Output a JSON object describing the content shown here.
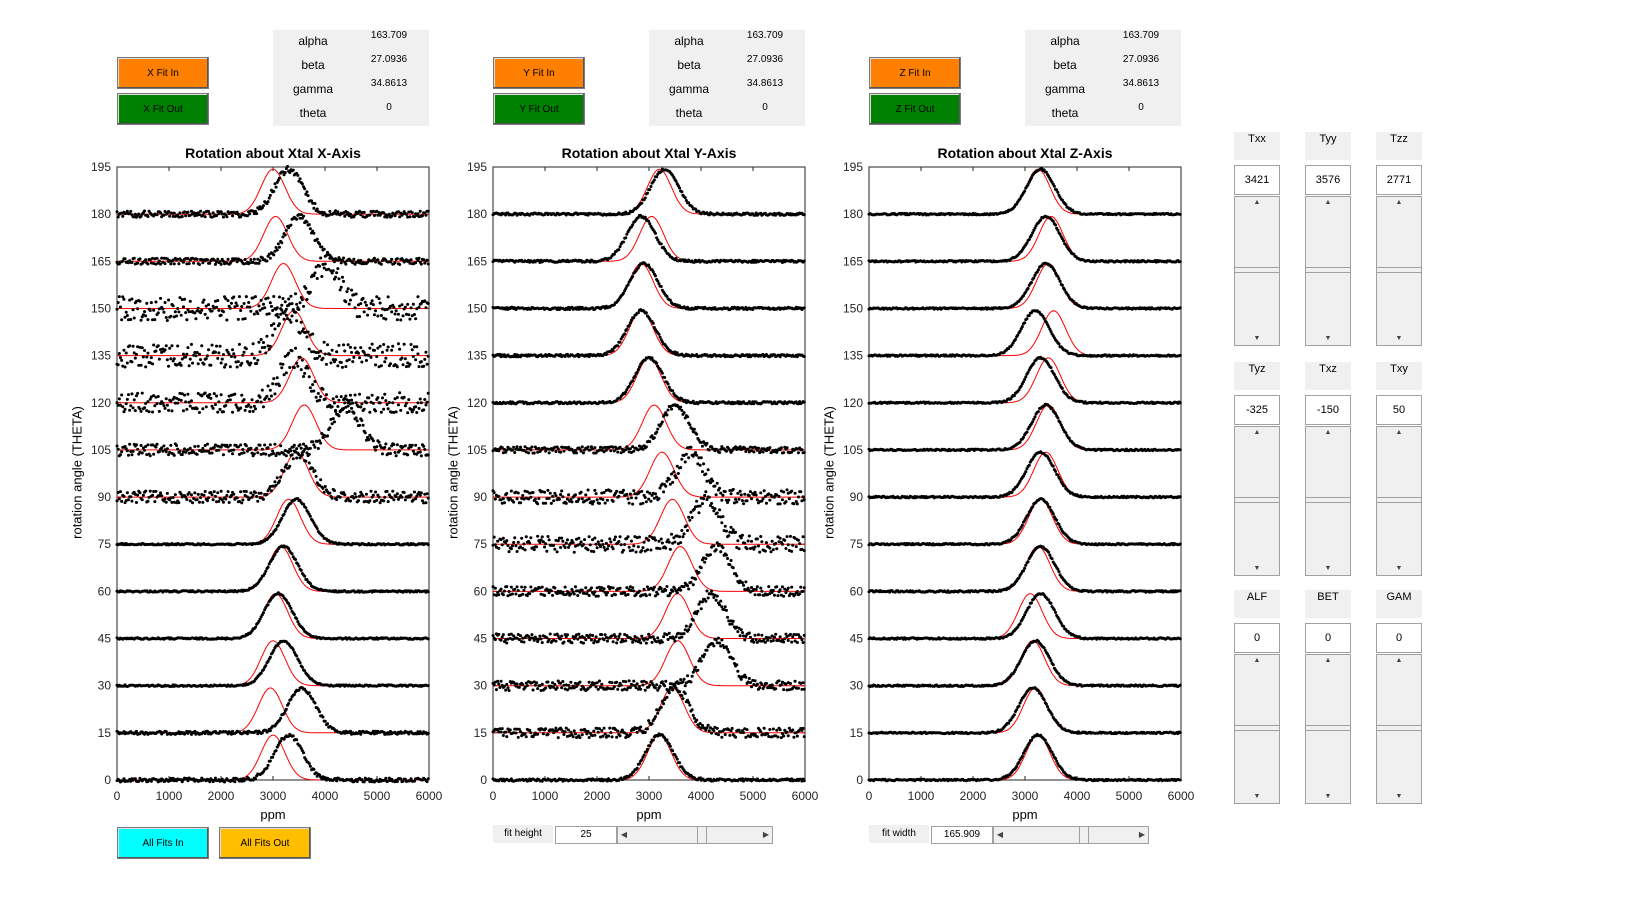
{
  "panels": [
    {
      "id": "x",
      "fit_in_label": "X Fit In",
      "fit_out_label": "X Fit Out",
      "params": [
        {
          "name": "alpha",
          "value": "163.709"
        },
        {
          "name": "beta",
          "value": "27.0936"
        },
        {
          "name": "gamma",
          "value": "34.8613"
        },
        {
          "name": "theta",
          "value": "0"
        }
      ],
      "title": "Rotation about Xtal X-Axis",
      "ylabel": "rotation angle (THETA)",
      "xlabel": "ppm"
    },
    {
      "id": "y",
      "fit_in_label": "Y Fit In",
      "fit_out_label": "Y Fit Out",
      "params": [
        {
          "name": "alpha",
          "value": "163.709"
        },
        {
          "name": "beta",
          "value": "27.0936"
        },
        {
          "name": "gamma",
          "value": "34.8613"
        },
        {
          "name": "theta",
          "value": "0"
        }
      ],
      "title": "Rotation about Xtal Y-Axis",
      "ylabel": "rotation angle (THETA)",
      "xlabel": "ppm"
    },
    {
      "id": "z",
      "fit_in_label": "Z Fit In",
      "fit_out_label": "Z Fit Out",
      "params": [
        {
          "name": "alpha",
          "value": "163.709"
        },
        {
          "name": "beta",
          "value": "27.0936"
        },
        {
          "name": "gamma",
          "value": "34.8613"
        },
        {
          "name": "theta",
          "value": "0"
        }
      ],
      "title": "Rotation about Xtal Z-Axis",
      "ylabel": "rotation angle (THETA)",
      "xlabel": "ppm"
    }
  ],
  "bottom": {
    "all_fits_in_label": "All Fits In",
    "all_fits_out_label": "All Fits Out",
    "fit_height_label": "fit height",
    "fit_height_value": "25",
    "fit_height_slider": 0.55,
    "fit_width_label": "fit width",
    "fit_width_value": "165.909",
    "fit_width_slider": 0.6
  },
  "tensor_controls": [
    {
      "label": "Txx",
      "value": "3421"
    },
    {
      "label": "Tyy",
      "value": "3576"
    },
    {
      "label": "Tzz",
      "value": "2771"
    },
    {
      "label": "Tyz",
      "value": "-325"
    },
    {
      "label": "Txz",
      "value": "-150"
    },
    {
      "label": "Txy",
      "value": "50"
    },
    {
      "label": "ALF",
      "value": "0"
    },
    {
      "label": "BET",
      "value": "0"
    },
    {
      "label": "GAM",
      "value": "0"
    }
  ],
  "colors": {
    "fit_in": "#ff8000",
    "fit_out": "#008000",
    "all_fits_in": "#00ffff",
    "all_fits_out": "#ffbf00",
    "fit_curve": "#ff0000",
    "data_points": "#000000"
  },
  "chart_data": [
    {
      "type": "scatter",
      "title": "Rotation about Xtal X-Axis",
      "xlabel": "ppm",
      "ylabel": "rotation angle (THETA)",
      "xlim": [
        0,
        6000
      ],
      "ylim": [
        0,
        195
      ],
      "xticks": [
        0,
        1000,
        2000,
        3000,
        4000,
        5000,
        6000
      ],
      "yticks": [
        0,
        15,
        30,
        45,
        60,
        75,
        90,
        105,
        120,
        135,
        150,
        165,
        180,
        195
      ],
      "series": [
        {
          "name": "fit",
          "color": "#ff0000",
          "angles": [
            0,
            15,
            30,
            45,
            60,
            75,
            90,
            105,
            120,
            135,
            150,
            165,
            180
          ],
          "centers": [
            3000,
            2950,
            3000,
            3050,
            3150,
            3300,
            3450,
            3600,
            3550,
            3400,
            3200,
            3050,
            3000
          ]
        },
        {
          "name": "data",
          "color": "#000000",
          "angles": [
            0,
            15,
            30,
            45,
            60,
            75,
            90,
            105,
            120,
            135,
            150,
            165,
            180
          ],
          "peaks": [
            3300,
            3550,
            3200,
            3100,
            3200,
            3450,
            3500,
            4400,
            3400,
            3300,
            4000,
            3500,
            3300
          ],
          "noise": [
            0.5,
            0.4,
            0.2,
            0.2,
            0.2,
            0.2,
            1.5,
            1.5,
            2.5,
            3,
            3,
            0.8,
            0.8
          ]
        }
      ]
    },
    {
      "type": "scatter",
      "title": "Rotation about Xtal Y-Axis",
      "xlabel": "ppm",
      "ylabel": "rotation angle (THETA)",
      "xlim": [
        0,
        6000
      ],
      "ylim": [
        0,
        195
      ],
      "xticks": [
        0,
        1000,
        2000,
        3000,
        4000,
        5000,
        6000
      ],
      "yticks": [
        0,
        15,
        30,
        45,
        60,
        75,
        90,
        105,
        120,
        135,
        150,
        165,
        180,
        195
      ],
      "series": [
        {
          "name": "fit",
          "color": "#ff0000",
          "angles": [
            0,
            15,
            30,
            45,
            60,
            75,
            90,
            105,
            120,
            135,
            150,
            165,
            180
          ],
          "centers": [
            3200,
            3450,
            3550,
            3550,
            3600,
            3450,
            3250,
            3100,
            3000,
            2850,
            2850,
            3050,
            3200
          ],
          "extra": []
        },
        {
          "name": "data",
          "color": "#000000",
          "angles": [
            0,
            15,
            30,
            45,
            60,
            75,
            90,
            105,
            120,
            135,
            150,
            165,
            180
          ],
          "peaks": [
            3200,
            3500,
            4300,
            4200,
            4300,
            4100,
            3800,
            3500,
            3000,
            2850,
            2900,
            2850,
            3300
          ],
          "noise": [
            0.3,
            1.2,
            1.2,
            1.2,
            1.2,
            2,
            1.8,
            0.8,
            0.3,
            0.3,
            0.3,
            0.3,
            0.3
          ]
        }
      ]
    },
    {
      "type": "scatter",
      "title": "Rotation about Xtal Z-Axis",
      "xlabel": "ppm",
      "ylabel": "rotation angle (THETA)",
      "xlim": [
        0,
        6000
      ],
      "ylim": [
        0,
        195
      ],
      "xticks": [
        0,
        1000,
        2000,
        3000,
        4000,
        5000,
        6000
      ],
      "yticks": [
        0,
        15,
        30,
        45,
        60,
        75,
        90,
        105,
        120,
        135,
        150,
        165,
        180,
        195
      ],
      "series": [
        {
          "name": "fit",
          "color": "#ff0000",
          "angles": [
            0,
            15,
            30,
            45,
            60,
            75,
            90,
            105,
            120,
            135,
            150,
            165,
            180
          ],
          "centers": [
            3250,
            3200,
            3150,
            3100,
            3250,
            3300,
            3400,
            3450,
            3450,
            3550,
            3450,
            3500,
            3250
          ]
        },
        {
          "name": "data",
          "color": "#000000",
          "angles": [
            0,
            15,
            30,
            45,
            60,
            75,
            90,
            105,
            120,
            135,
            150,
            165,
            180
          ],
          "peaks": [
            3250,
            3150,
            3200,
            3300,
            3300,
            3300,
            3300,
            3400,
            3300,
            3200,
            3400,
            3400,
            3300
          ],
          "noise": [
            0.2,
            0.2,
            0.2,
            0.2,
            0.2,
            0.2,
            0.2,
            0.2,
            0.2,
            0.2,
            0.2,
            0.2,
            0.2
          ]
        }
      ]
    }
  ]
}
